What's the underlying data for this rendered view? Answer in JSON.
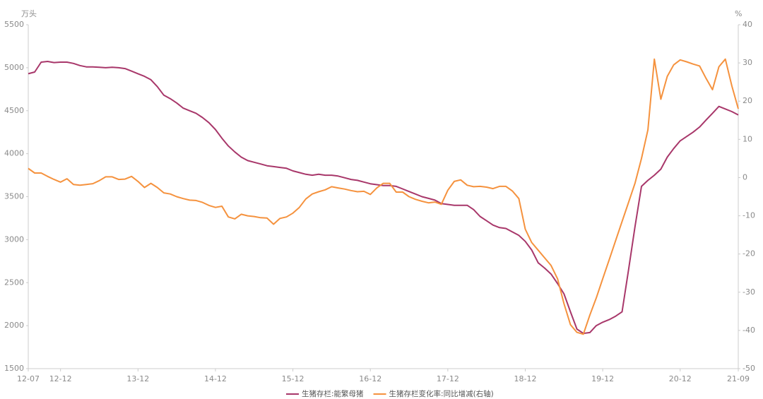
{
  "chart_data": {
    "type": "line",
    "y_unit_label": "万头",
    "y2_unit_label": "%",
    "categories": [
      "12-07",
      null,
      null,
      null,
      null,
      "12-12",
      null,
      null,
      null,
      null,
      null,
      null,
      null,
      null,
      null,
      null,
      null,
      "13-12",
      null,
      null,
      null,
      null,
      null,
      null,
      null,
      null,
      null,
      null,
      null,
      "14-12",
      null,
      null,
      null,
      null,
      null,
      null,
      null,
      null,
      null,
      null,
      null,
      "15-12",
      null,
      null,
      null,
      null,
      null,
      null,
      null,
      null,
      null,
      null,
      null,
      "16-12",
      null,
      null,
      null,
      null,
      null,
      null,
      null,
      null,
      null,
      null,
      null,
      "17-12",
      null,
      null,
      null,
      null,
      null,
      null,
      null,
      null,
      null,
      null,
      null,
      "18-12",
      null,
      null,
      null,
      null,
      null,
      null,
      null,
      null,
      null,
      null,
      null,
      "19-12",
      null,
      null,
      null,
      null,
      null,
      null,
      null,
      null,
      null,
      null,
      null,
      "20-12",
      null,
      null,
      null,
      null,
      null,
      null,
      null,
      null,
      "21-09"
    ],
    "series": [
      {
        "name": "生猪存栏:能繁母猪",
        "color": "#a8376a",
        "axis": "y",
        "values": [
          4930,
          4950,
          5065,
          5073,
          5060,
          5065,
          5065,
          5050,
          5025,
          5010,
          5010,
          5005,
          5000,
          5005,
          5000,
          4990,
          4960,
          4930,
          4900,
          4860,
          4780,
          4680,
          4640,
          4590,
          4530,
          4500,
          4470,
          4420,
          4360,
          4280,
          4180,
          4090,
          4020,
          3960,
          3920,
          3900,
          3880,
          3860,
          3850,
          3840,
          3830,
          3800,
          3780,
          3760,
          3750,
          3760,
          3750,
          3750,
          3740,
          3720,
          3700,
          3690,
          3670,
          3650,
          3640,
          3630,
          3630,
          3620,
          3590,
          3560,
          3530,
          3500,
          3480,
          3460,
          3420,
          3410,
          3400,
          3400,
          3400,
          3350,
          3270,
          3220,
          3170,
          3140,
          3130,
          3090,
          3050,
          2980,
          2880,
          2730,
          2670,
          2600,
          2490,
          2370,
          2160,
          1960,
          1910,
          1920,
          2000,
          2040,
          2070,
          2110,
          2160,
          2650,
          3150,
          3620,
          3690,
          3750,
          3820,
          3960,
          4060,
          4150,
          4200,
          4250,
          4310,
          4390,
          4470,
          4550,
          4520,
          4490,
          4450
        ]
      },
      {
        "name": "生猪存栏变化率:同比增减(右轴)",
        "color": "#f5923e",
        "axis": "y2",
        "values": [
          2.4,
          1.2,
          1.2,
          0.3,
          -0.5,
          -1.2,
          -0.3,
          -1.8,
          -2.0,
          -1.8,
          -1.6,
          -0.8,
          0.2,
          0.2,
          -0.5,
          -0.4,
          0.3,
          -1.0,
          -2.6,
          -1.5,
          -2.6,
          -4.0,
          -4.3,
          -5.0,
          -5.5,
          -5.9,
          -6.0,
          -6.5,
          -7.3,
          -7.8,
          -7.5,
          -10.3,
          -10.8,
          -9.6,
          -10.0,
          -10.2,
          -10.5,
          -10.6,
          -12.2,
          -10.7,
          -10.3,
          -9.3,
          -7.8,
          -5.6,
          -4.3,
          -3.7,
          -3.2,
          -2.4,
          -2.7,
          -3.0,
          -3.4,
          -3.7,
          -3.6,
          -4.4,
          -2.7,
          -1.5,
          -1.5,
          -3.8,
          -3.8,
          -5.0,
          -5.7,
          -6.2,
          -6.6,
          -6.4,
          -7.0,
          -3.3,
          -1.0,
          -0.6,
          -2.0,
          -2.4,
          -2.3,
          -2.5,
          -2.9,
          -2.3,
          -2.3,
          -3.5,
          -5.5,
          -13.5,
          -17.0,
          -19.0,
          -21.0,
          -23.0,
          -26.5,
          -33.0,
          -38.5,
          -40.5,
          -41.0,
          -36.0,
          -31.5,
          -26.5,
          -21.5,
          -16.5,
          -11.5,
          -6.5,
          -1.5,
          5.0,
          12.5,
          31.0,
          20.5,
          26.5,
          29.5,
          30.8,
          30.3,
          29.7,
          29.2,
          26.0,
          23.0,
          29.0,
          31.0,
          24.0,
          18.0
        ]
      }
    ],
    "ylim": [
      1500,
      5500
    ],
    "yticks": [
      1500,
      2000,
      2500,
      3000,
      3500,
      4000,
      4500,
      5000,
      5500
    ],
    "y2lim": [
      -50,
      40
    ],
    "y2ticks": [
      -50,
      -40,
      -30,
      -20,
      -10,
      0,
      10,
      20,
      30,
      40
    ],
    "grid": false,
    "legend": "bottom"
  }
}
